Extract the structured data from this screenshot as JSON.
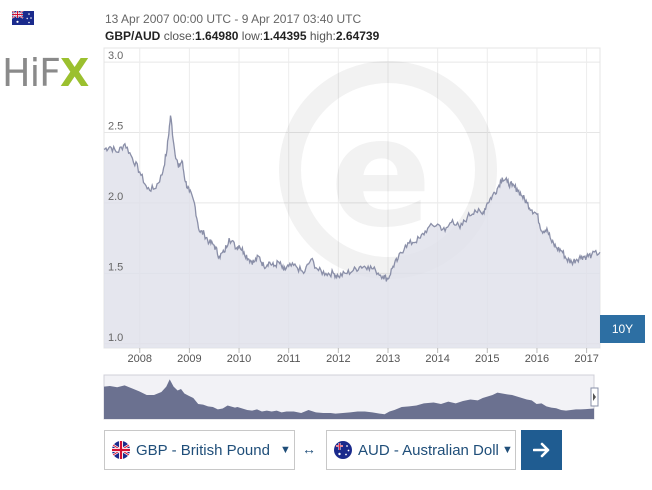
{
  "header": {
    "range": "13 Apr 2007 00:00 UTC - 9 Apr 2017 03:40 UTC",
    "pair": "GBP/AUD",
    "close_label": "close:",
    "close": "1.64980",
    "low_label": "low:",
    "low": "1.44395",
    "high_label": "high:",
    "high": "2.64739"
  },
  "logo": {
    "hi": "Hi",
    "f": "F",
    "x": "X"
  },
  "period_button": "10Y",
  "converter": {
    "from_label": "GBP - British Pound",
    "to_label": "AUD - Australian Dollar",
    "swap_symbol": "↔"
  },
  "colors": {
    "line": "#8a8fa8",
    "area": "#dfe0ea",
    "navigator": "#6b7190",
    "accent": "#2d6fa3",
    "go": "#1f5c91"
  },
  "chart_data": {
    "type": "area",
    "x": [
      2007.28,
      2007.4,
      2007.55,
      2007.7,
      2007.85,
      2008.0,
      2008.15,
      2008.3,
      2008.45,
      2008.55,
      2008.62,
      2008.7,
      2008.78,
      2008.85,
      2008.92,
      2009.0,
      2009.1,
      2009.2,
      2009.3,
      2009.4,
      2009.5,
      2009.6,
      2009.7,
      2009.8,
      2009.95,
      2010.0,
      2010.1,
      2010.2,
      2010.3,
      2010.4,
      2010.5,
      2010.6,
      2010.7,
      2010.8,
      2010.9,
      2011.0,
      2011.15,
      2011.3,
      2011.45,
      2011.6,
      2011.75,
      2011.9,
      2012.0,
      2012.15,
      2012.3,
      2012.45,
      2012.6,
      2012.75,
      2012.9,
      2013.0,
      2013.1,
      2013.2,
      2013.35,
      2013.5,
      2013.65,
      2013.8,
      2014.0,
      2014.15,
      2014.3,
      2014.45,
      2014.6,
      2014.75,
      2014.9,
      2015.0,
      2015.1,
      2015.2,
      2015.3,
      2015.4,
      2015.5,
      2015.6,
      2015.7,
      2015.8,
      2015.9,
      2016.0,
      2016.1,
      2016.2,
      2016.3,
      2016.4,
      2016.5,
      2016.6,
      2016.7,
      2016.8,
      2016.9,
      2017.0,
      2017.1,
      2017.27
    ],
    "values": [
      2.38,
      2.4,
      2.36,
      2.42,
      2.32,
      2.22,
      2.1,
      2.1,
      2.2,
      2.38,
      2.62,
      2.38,
      2.25,
      2.3,
      2.15,
      2.08,
      2.0,
      1.8,
      1.78,
      1.72,
      1.7,
      1.62,
      1.65,
      1.75,
      1.68,
      1.7,
      1.65,
      1.6,
      1.58,
      1.62,
      1.55,
      1.58,
      1.55,
      1.58,
      1.52,
      1.55,
      1.55,
      1.5,
      1.6,
      1.52,
      1.5,
      1.5,
      1.48,
      1.5,
      1.52,
      1.55,
      1.55,
      1.52,
      1.48,
      1.46,
      1.55,
      1.6,
      1.7,
      1.72,
      1.75,
      1.82,
      1.85,
      1.8,
      1.88,
      1.82,
      1.9,
      1.95,
      1.92,
      2.0,
      2.05,
      2.1,
      2.18,
      2.15,
      2.12,
      2.1,
      2.05,
      2.0,
      1.95,
      1.92,
      1.8,
      1.82,
      1.72,
      1.68,
      1.66,
      1.6,
      1.58,
      1.6,
      1.62,
      1.62,
      1.63,
      1.65
    ],
    "xlim": [
      2007.28,
      2017.27
    ],
    "ylim": [
      0.97,
      3.1
    ],
    "yticks": [
      "1.0",
      "1.5",
      "2.0",
      "2.5",
      "3.0"
    ],
    "xticks": [
      "2008",
      "2009",
      "2010",
      "2011",
      "2012",
      "2013",
      "2014",
      "2015",
      "2016",
      "2017"
    ],
    "grid": true
  }
}
